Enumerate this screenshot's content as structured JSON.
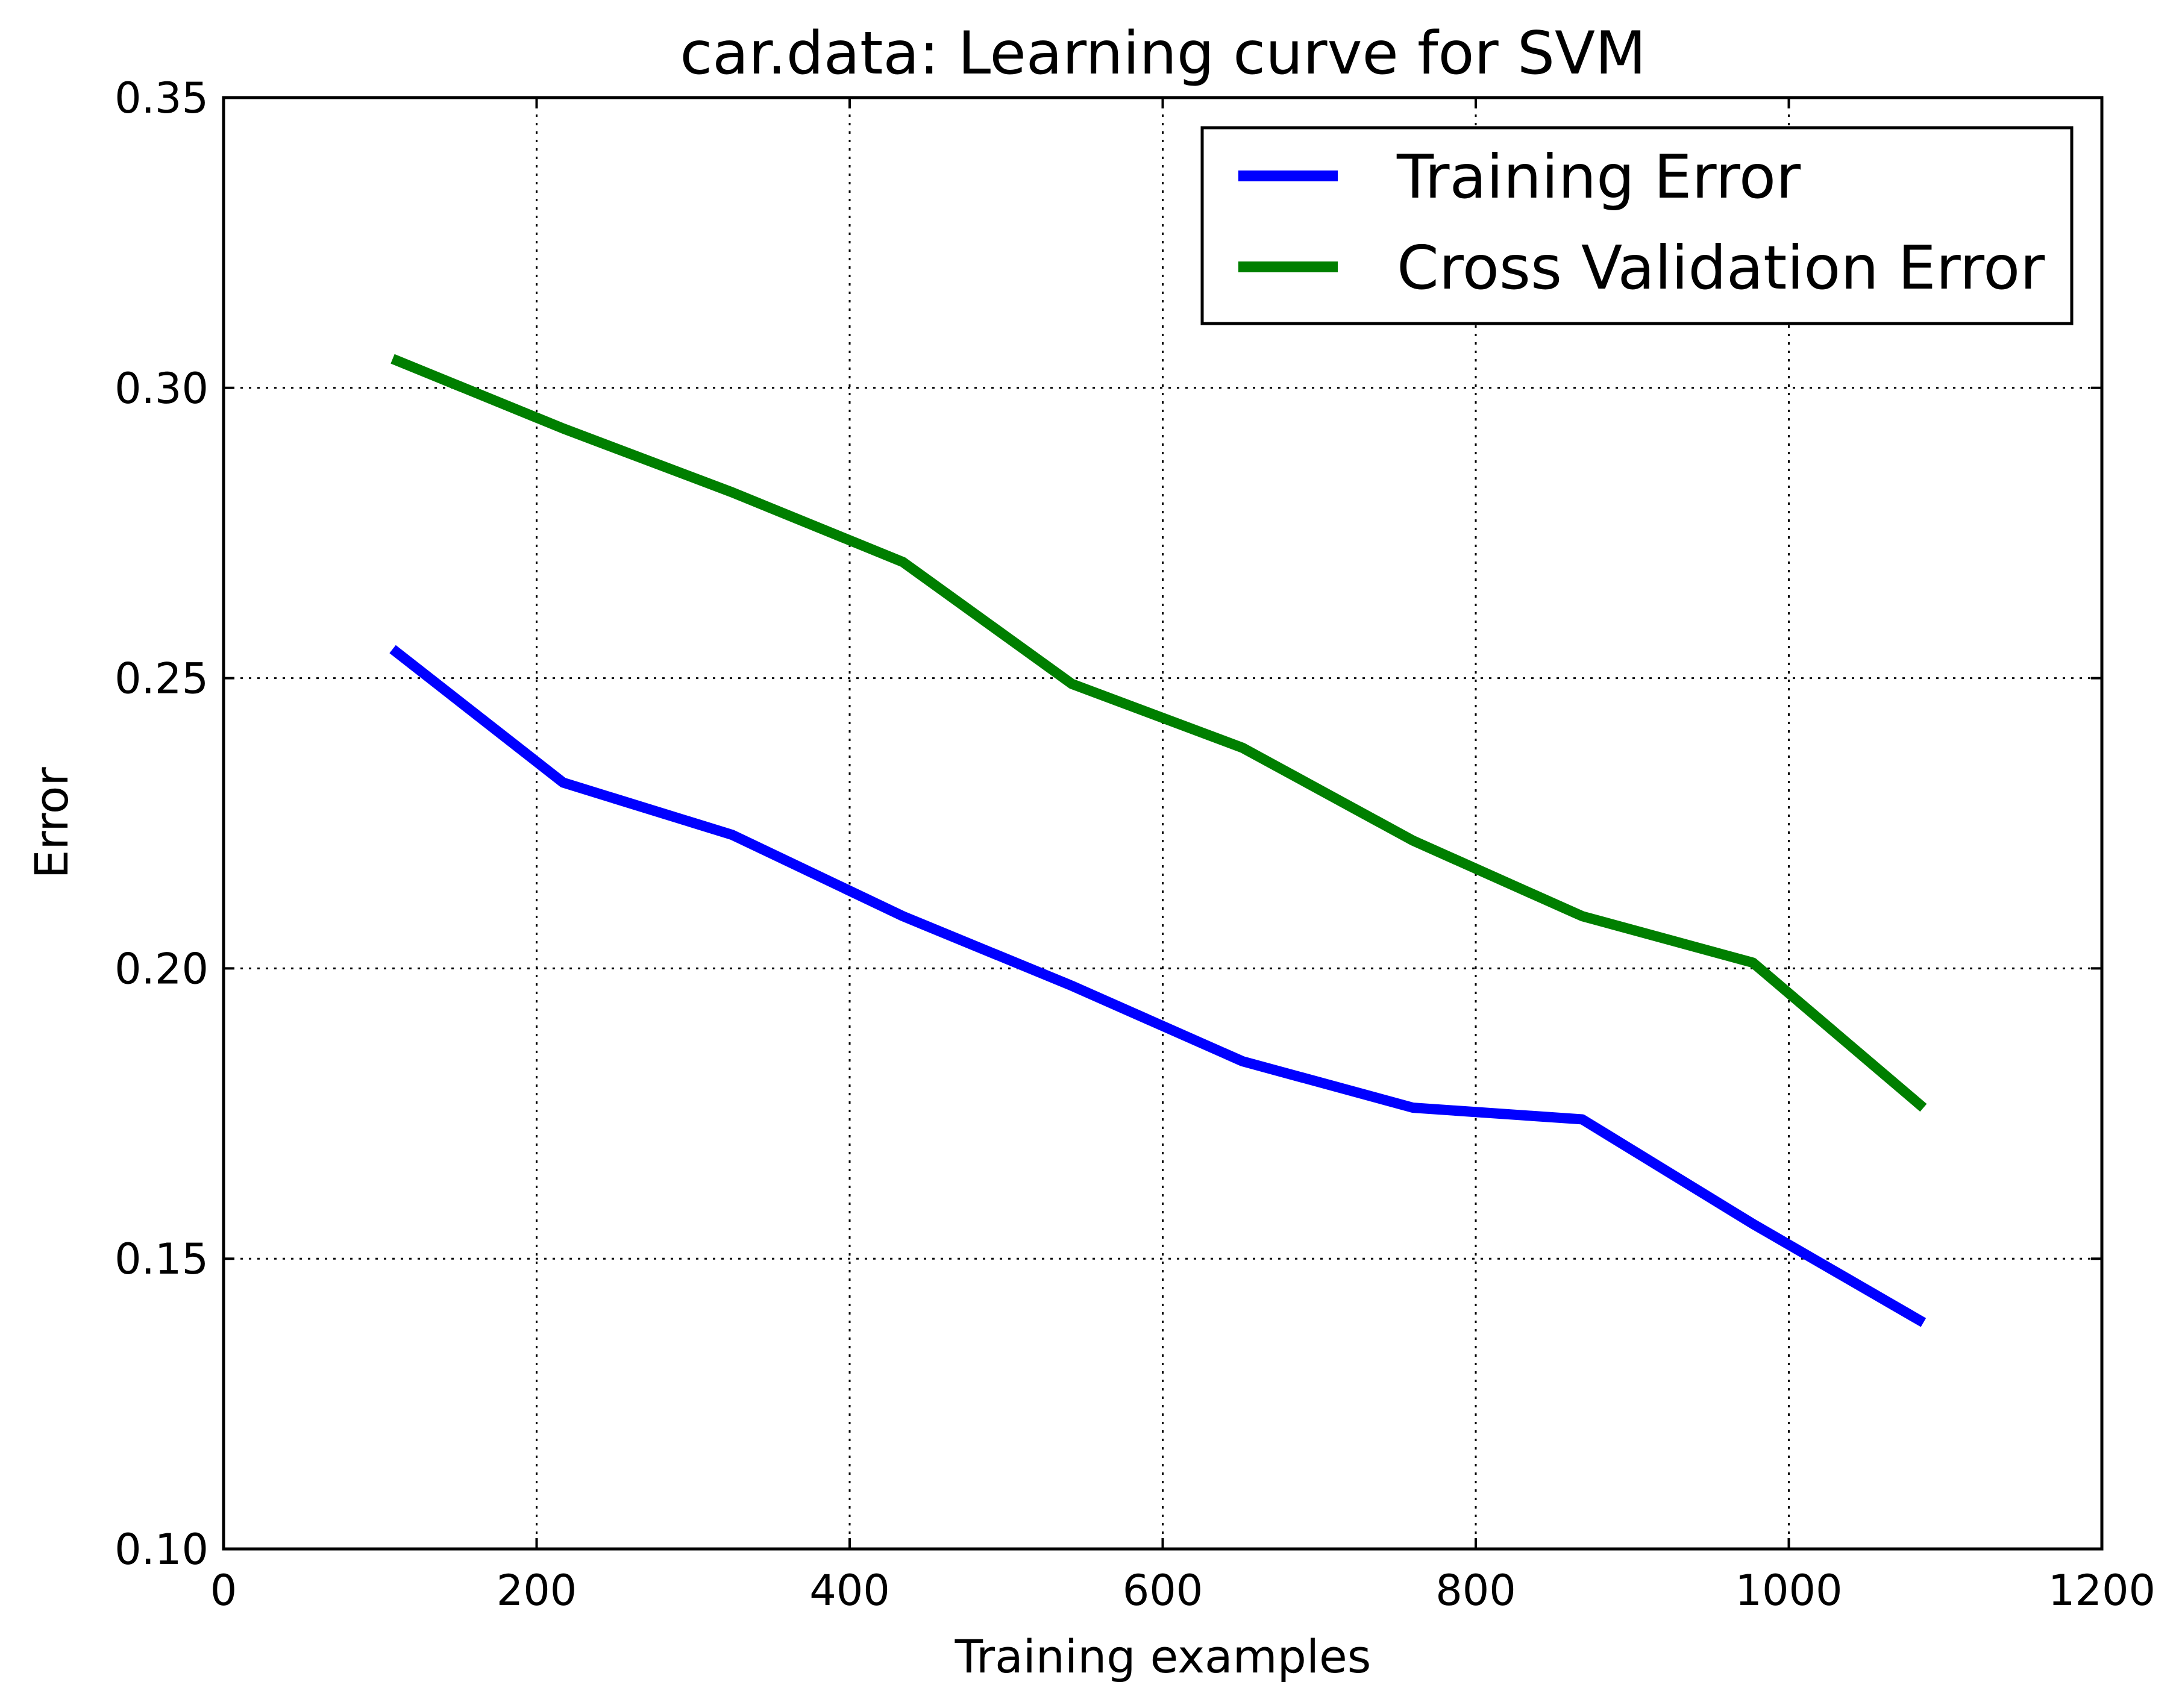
{
  "chart_data": {
    "type": "line",
    "title": "car.data: Learning curve for SVM",
    "xlabel": "Training examples",
    "ylabel": "Error",
    "xlim": [
      0,
      1200
    ],
    "ylim": [
      0.1,
      0.35
    ],
    "xticks": [
      0,
      200,
      400,
      600,
      800,
      1000,
      1200
    ],
    "xtick_labels": [
      "0",
      "200",
      "400",
      "600",
      "800",
      "1000",
      "1200"
    ],
    "yticks": [
      0.1,
      0.15,
      0.2,
      0.25,
      0.3,
      0.35
    ],
    "ytick_labels": [
      "0.10",
      "0.15",
      "0.20",
      "0.25",
      "0.30",
      "0.35"
    ],
    "grid": true,
    "legend_position": "top-right",
    "x": [
      108,
      217,
      325,
      434,
      542,
      651,
      760,
      868,
      977,
      1086
    ],
    "series": [
      {
        "name": "Training Error",
        "color": "#0000ff",
        "values": [
          0.255,
          0.232,
          0.223,
          0.209,
          0.197,
          0.184,
          0.176,
          0.174,
          0.156,
          0.139
        ]
      },
      {
        "name": "Cross Validation Error",
        "color": "#007f00",
        "values": [
          0.305,
          0.293,
          0.282,
          0.27,
          0.249,
          0.238,
          0.222,
          0.209,
          0.201,
          0.176
        ]
      }
    ]
  }
}
